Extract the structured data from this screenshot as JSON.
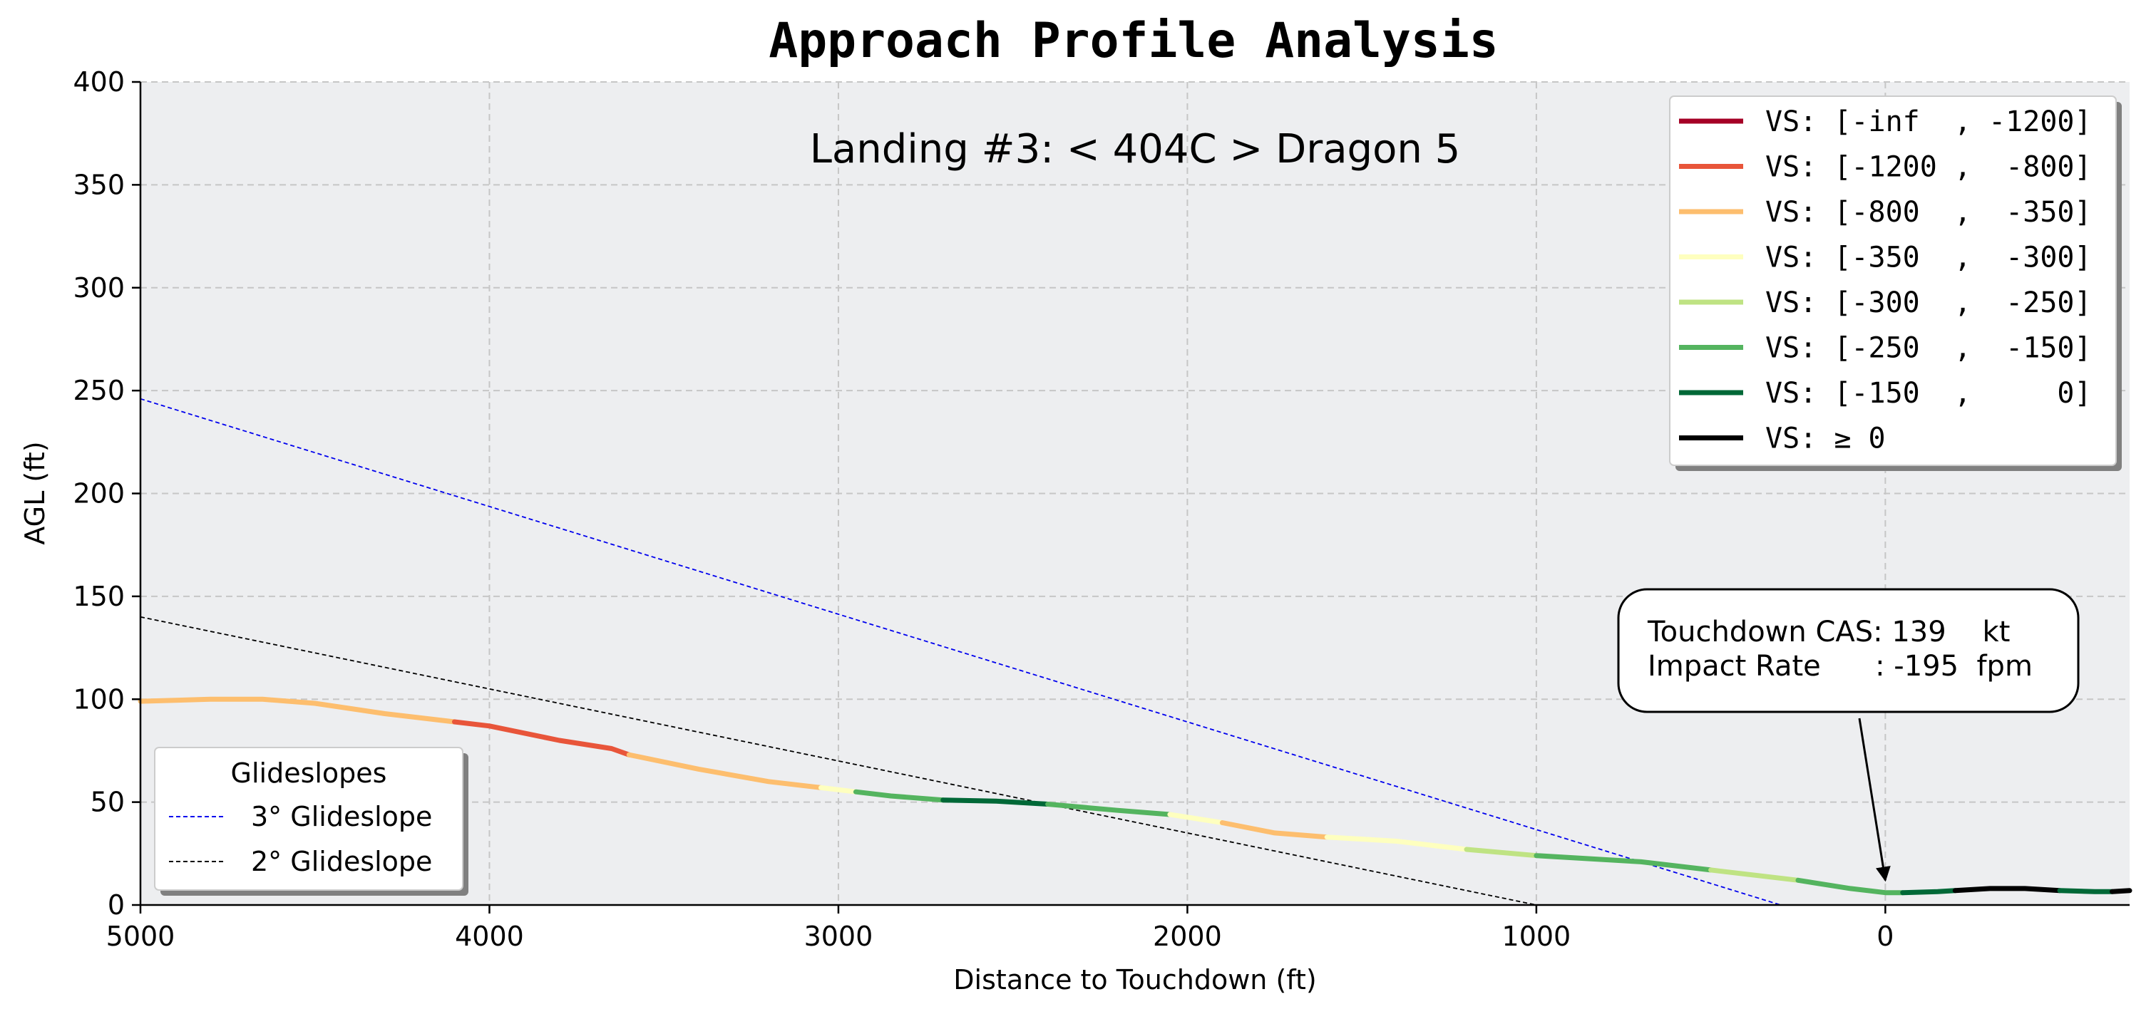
{
  "chart_data": {
    "type": "line",
    "title": "Approach Profile Analysis",
    "subtitle": "Landing #3: < 404C > Dragon 5",
    "xlabel": "Distance to Touchdown (ft)",
    "ylabel": "AGL (ft)",
    "xlim": [
      5000,
      -700
    ],
    "ylim": [
      0,
      400
    ],
    "x_ticks": [
      5000,
      4000,
      3000,
      2000,
      1000,
      0
    ],
    "x_tick_labels": [
      "5000",
      "4000",
      "3000",
      "2000",
      "1000",
      "0"
    ],
    "y_ticks": [
      0,
      50,
      100,
      150,
      200,
      250,
      300,
      350,
      400
    ],
    "y_tick_labels": [
      "0",
      "50",
      "100",
      "150",
      "200",
      "250",
      "300",
      "350",
      "400"
    ],
    "grid": true,
    "background": "#edeef0",
    "vs_legend": {
      "placement": "top-right",
      "entries": [
        {
          "label": "VS: [-inf  , -1200]",
          "color": "#a50026"
        },
        {
          "label": "VS: [-1200 ,  -800]",
          "color": "#e8553a"
        },
        {
          "label": "VS: [-800  ,  -350]",
          "color": "#fdbe6e"
        },
        {
          "label": "VS: [-350  ,  -300]",
          "color": "#feffbf"
        },
        {
          "label": "VS: [-300  ,  -250]",
          "color": "#bfe383"
        },
        {
          "label": "VS: [-250  ,  -150]",
          "color": "#54b45f"
        },
        {
          "label": "VS: [-150  ,     0]",
          "color": "#006837"
        },
        {
          "label": "VS: ≥ 0",
          "color": "#000000"
        }
      ]
    },
    "glideslope_legend": {
      "placement": "bottom-left",
      "title": "Glideslopes",
      "entries": [
        {
          "label": "3° Glideslope",
          "color": "#0000ee"
        },
        {
          "label": "2° Glideslope",
          "color": "#000000"
        }
      ]
    },
    "glideslopes": [
      {
        "name": "3° Glideslope",
        "color": "#0000ee",
        "x": [
          5000,
          300
        ],
        "y": [
          246,
          0
        ]
      },
      {
        "name": "2° Glideslope",
        "color": "#000000",
        "x": [
          5000,
          1000
        ],
        "y": [
          140,
          0
        ]
      }
    ],
    "profile_segments": [
      {
        "color": "#fdbe6e",
        "x": [
          5000,
          4900,
          4800,
          4650,
          4500,
          4300,
          4100
        ],
        "y": [
          99,
          99.5,
          100,
          100,
          98,
          93,
          89
        ]
      },
      {
        "color": "#e8553a",
        "x": [
          4100,
          4000,
          3800,
          3650,
          3600
        ],
        "y": [
          89,
          87,
          80,
          76,
          73
        ]
      },
      {
        "color": "#fdbe6e",
        "x": [
          3600,
          3400,
          3200,
          3050
        ],
        "y": [
          73,
          66,
          60,
          57
        ]
      },
      {
        "color": "#feffbf",
        "x": [
          3050,
          2950
        ],
        "y": [
          57,
          55
        ]
      },
      {
        "color": "#54b45f",
        "x": [
          2950,
          2850,
          2700
        ],
        "y": [
          55,
          53,
          51
        ]
      },
      {
        "color": "#006837",
        "x": [
          2700,
          2550,
          2400
        ],
        "y": [
          51,
          50.5,
          49
        ]
      },
      {
        "color": "#54b45f",
        "x": [
          2400,
          2200,
          2050
        ],
        "y": [
          49,
          46,
          44
        ]
      },
      {
        "color": "#feffbf",
        "x": [
          2050,
          1900
        ],
        "y": [
          44,
          40
        ]
      },
      {
        "color": "#fdbe6e",
        "x": [
          1900,
          1750,
          1600
        ],
        "y": [
          40,
          35,
          33
        ]
      },
      {
        "color": "#feffbf",
        "x": [
          1600,
          1400,
          1200
        ],
        "y": [
          33,
          31,
          27
        ]
      },
      {
        "color": "#bfe383",
        "x": [
          1200,
          1000
        ],
        "y": [
          27,
          24
        ]
      },
      {
        "color": "#54b45f",
        "x": [
          1000,
          700,
          500
        ],
        "y": [
          24,
          21,
          17
        ]
      },
      {
        "color": "#bfe383",
        "x": [
          500,
          250
        ],
        "y": [
          17,
          12
        ]
      },
      {
        "color": "#54b45f",
        "x": [
          250,
          100,
          0,
          -50
        ],
        "y": [
          12,
          8,
          6,
          6
        ]
      },
      {
        "color": "#006837",
        "x": [
          -50,
          -150,
          -200
        ],
        "y": [
          6,
          6.5,
          7
        ]
      },
      {
        "color": "#000000",
        "x": [
          -200,
          -300,
          -400,
          -500
        ],
        "y": [
          7,
          8,
          8,
          7
        ]
      },
      {
        "color": "#006837",
        "x": [
          -500,
          -600,
          -650
        ],
        "y": [
          7,
          6.5,
          6.5
        ]
      },
      {
        "color": "#000000",
        "x": [
          -650,
          -700
        ],
        "y": [
          6.5,
          7
        ]
      }
    ],
    "annotation": {
      "lines": [
        "Touchdown CAS: 139    kt",
        "Impact Rate      : -195  fpm"
      ],
      "arrow_target": {
        "x": 0,
        "y": 12
      }
    }
  }
}
